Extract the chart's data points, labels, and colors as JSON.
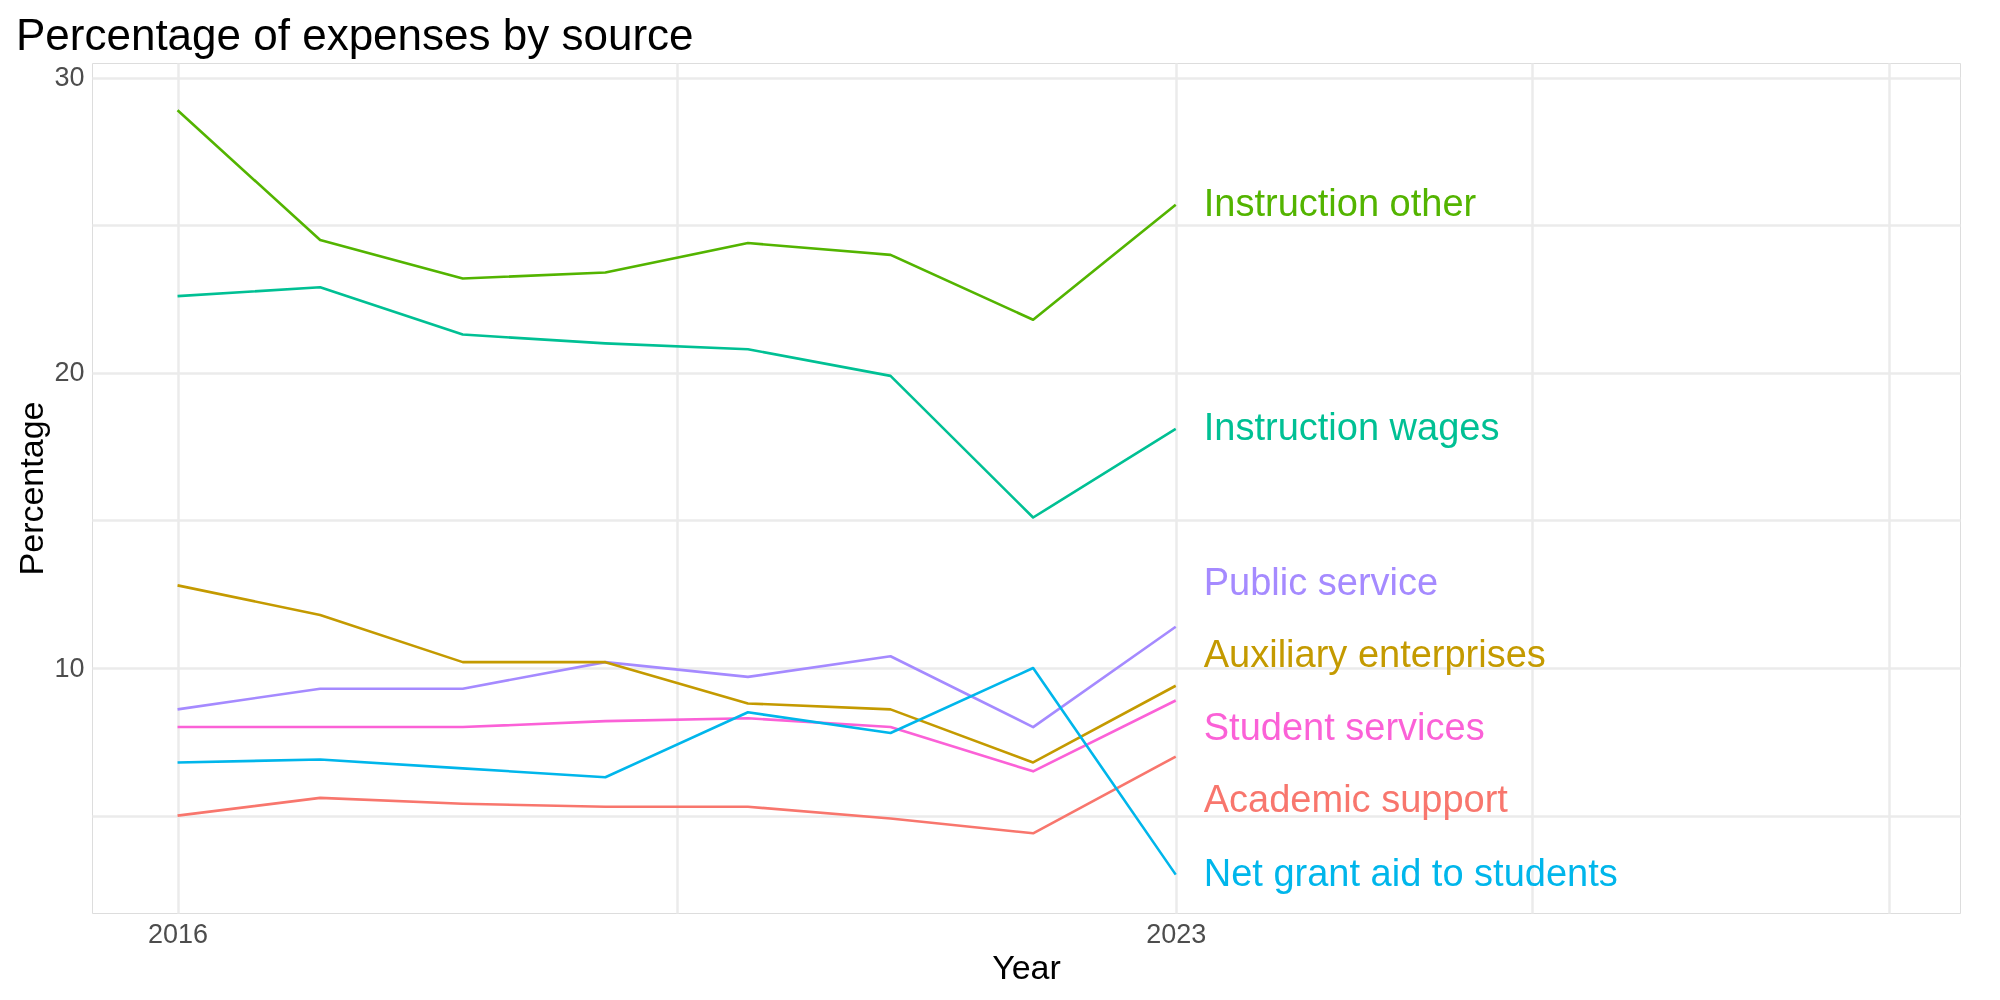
{
  "chart_data": {
    "type": "line",
    "title": "Percentage of expenses by source",
    "xlabel": "Year",
    "ylabel": "Percentage",
    "x": [
      2016,
      2017,
      2018,
      2019,
      2020,
      2021,
      2022,
      2023
    ],
    "xlim": [
      2015.4,
      2028.5
    ],
    "xticks": [
      2016,
      {
        "value": 2019.5,
        "label": null
      },
      2023,
      {
        "value": 2025.5,
        "label": null
      },
      {
        "value": 2028,
        "label": null
      }
    ],
    "ylim": [
      1.7,
      30.5
    ],
    "yticks": [
      {
        "value": 5,
        "label": null
      },
      10,
      {
        "value": 15,
        "label": null
      },
      20,
      {
        "value": 25,
        "label": null
      },
      30
    ],
    "grid": true,
    "legend": false,
    "line_style": "solid",
    "marker": "none",
    "series": [
      {
        "name": "Instruction other",
        "color": "#53b400",
        "values": [
          28.9,
          24.5,
          23.2,
          23.4,
          24.4,
          24.0,
          21.8,
          25.7
        ]
      },
      {
        "name": "Instruction wages",
        "color": "#00c094",
        "values": [
          22.6,
          22.9,
          21.3,
          21.0,
          20.8,
          19.9,
          15.1,
          18.1
        ]
      },
      {
        "name": "Public service",
        "color": "#a58aff",
        "values": [
          8.6,
          9.3,
          9.3,
          10.2,
          9.7,
          10.4,
          8.0,
          11.4
        ]
      },
      {
        "name": "Auxiliary enterprises",
        "color": "#c49a00",
        "values": [
          12.8,
          11.8,
          10.2,
          10.2,
          8.8,
          8.6,
          6.8,
          9.4
        ]
      },
      {
        "name": "Student services",
        "color": "#fb61d7",
        "values": [
          8.0,
          8.0,
          8.0,
          8.2,
          8.3,
          8.0,
          6.5,
          8.9
        ]
      },
      {
        "name": "Academic support",
        "color": "#f8766d",
        "values": [
          5.0,
          5.6,
          5.4,
          5.3,
          5.3,
          4.9,
          4.4,
          7.0
        ]
      },
      {
        "name": "Net grant aid to students",
        "color": "#00b6eb",
        "values": [
          6.8,
          6.9,
          6.6,
          6.3,
          8.5,
          7.8,
          10.0,
          3.0
        ]
      }
    ]
  }
}
